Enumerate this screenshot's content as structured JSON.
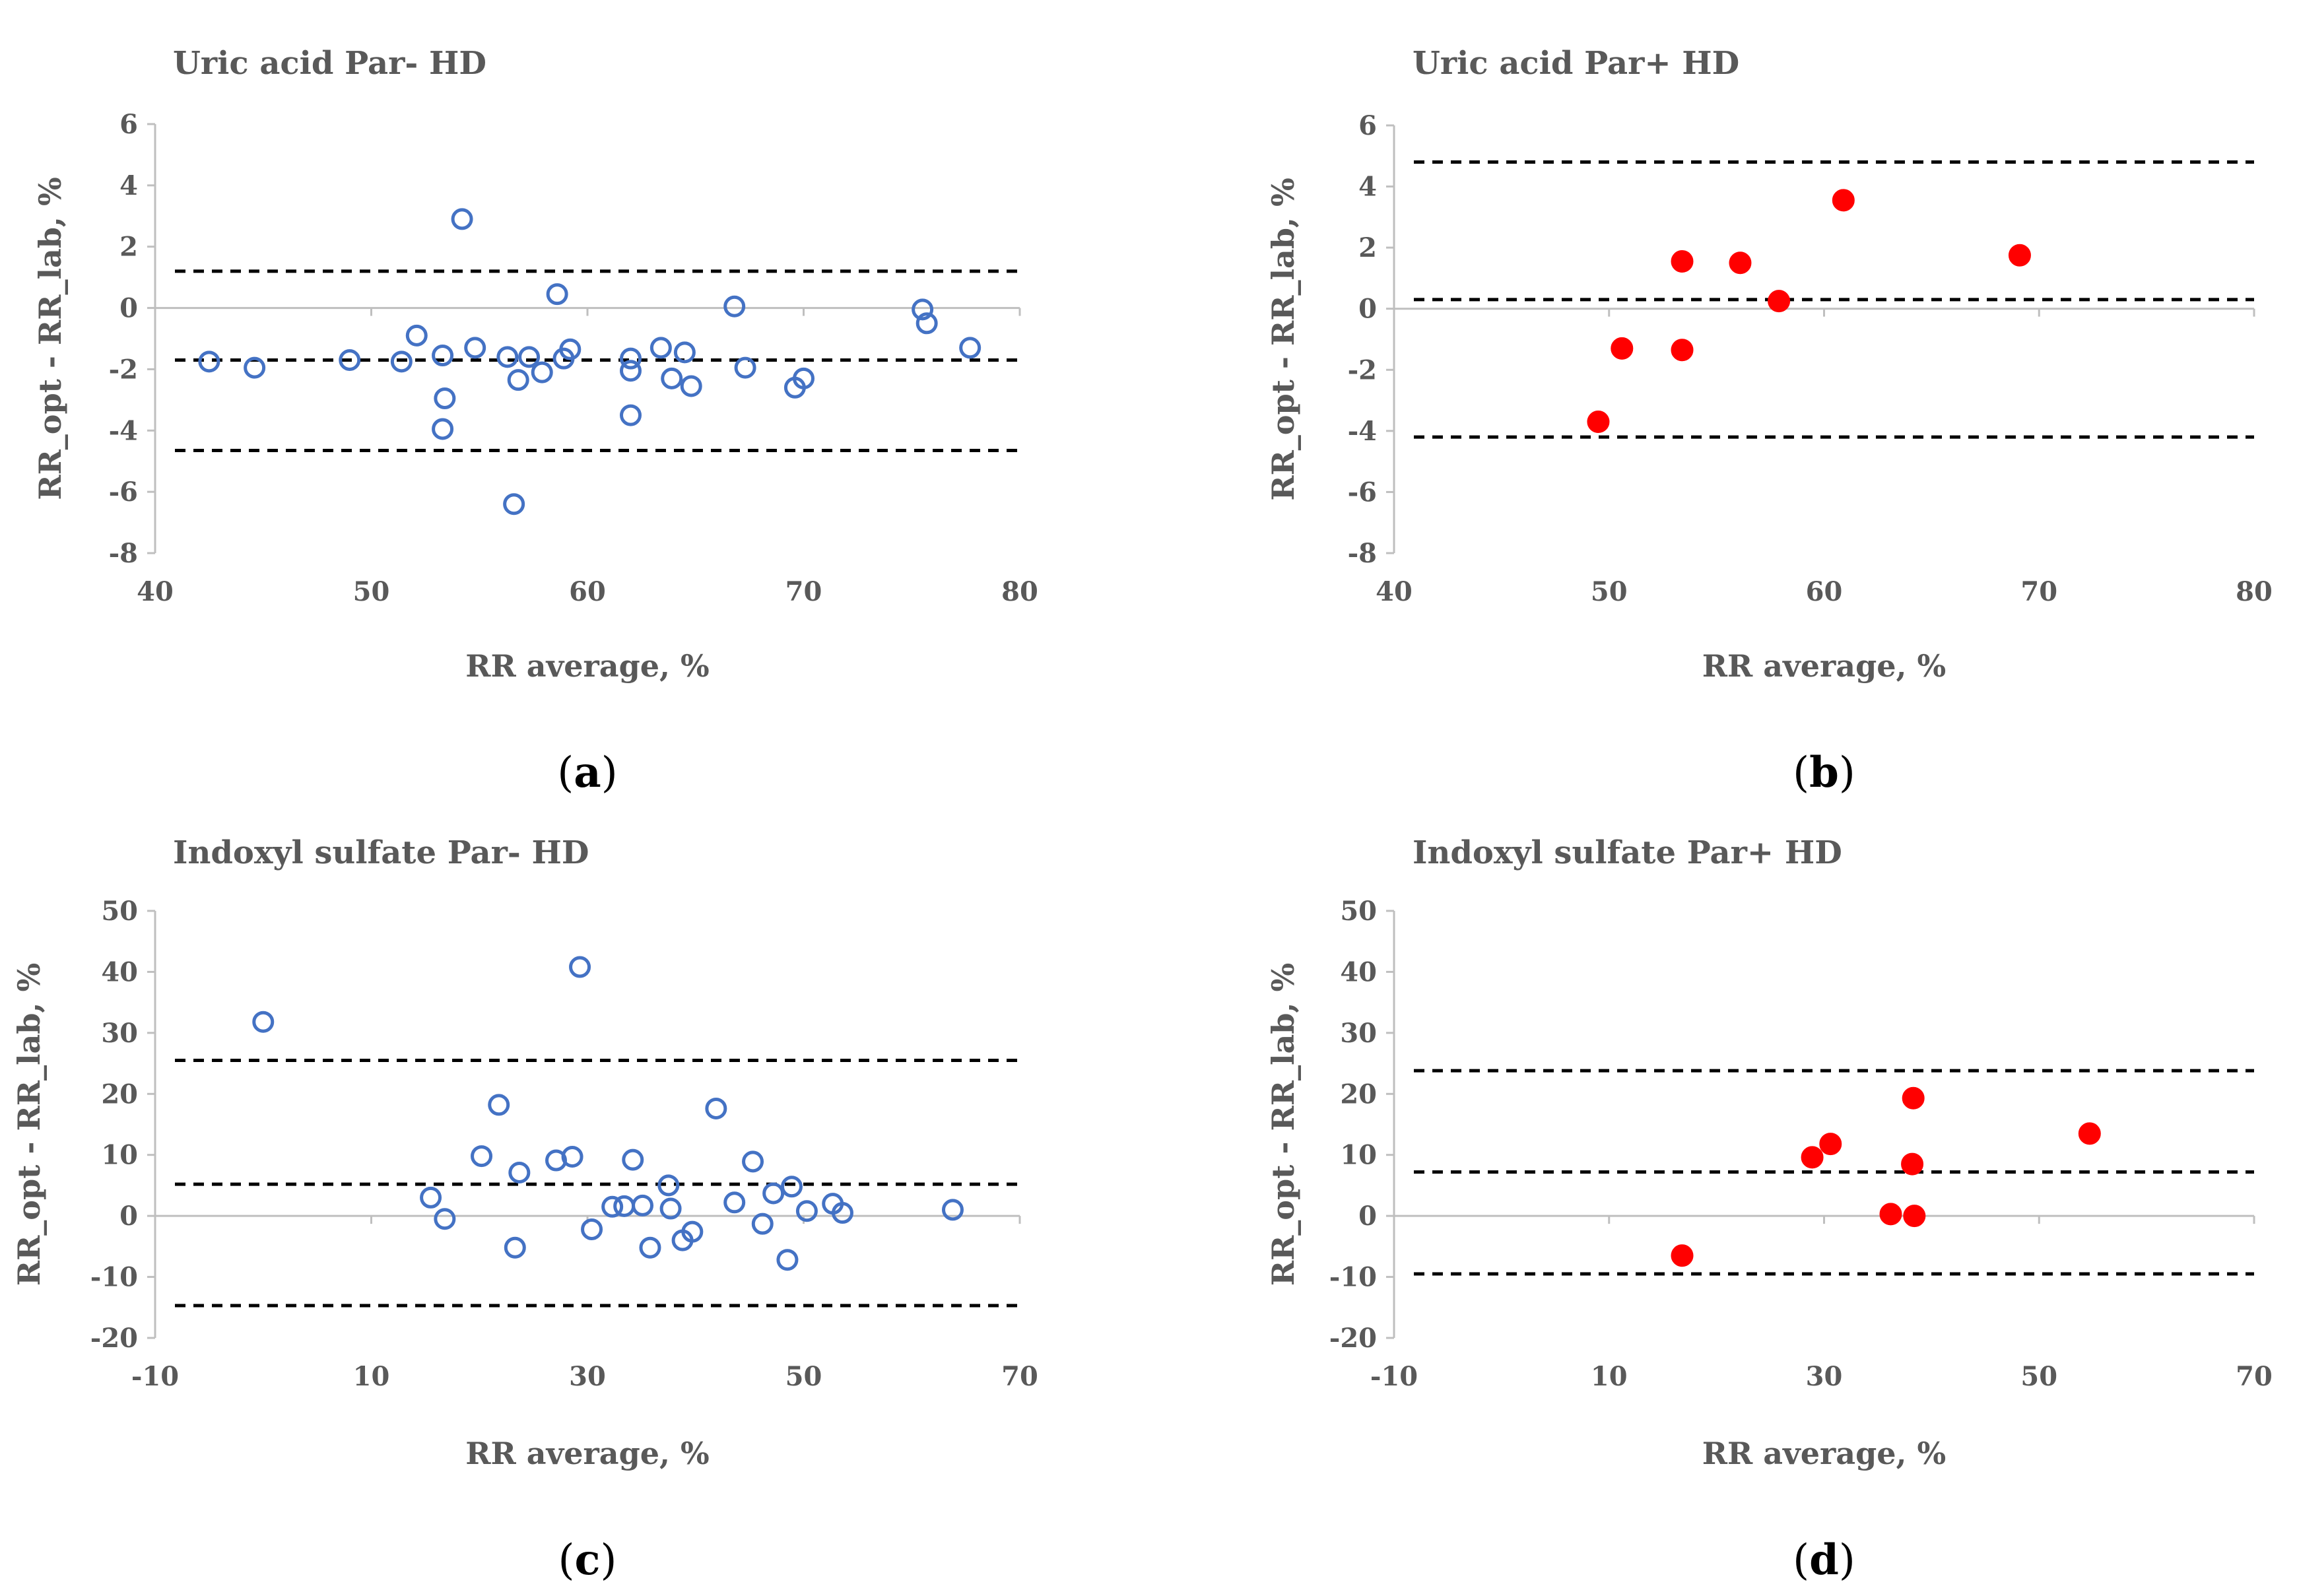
{
  "chart_data": [
    {
      "type": "scatter",
      "panel_label": "a",
      "title": "Uric acid Par- HD",
      "xlabel": "RR average, %",
      "ylabel": "RR_opt - RR_lab, %",
      "xlim": [
        40,
        80
      ],
      "ylim": [
        -8,
        6
      ],
      "xticks": [
        40,
        50,
        60,
        70,
        80
      ],
      "yticks": [
        -8,
        -6,
        -4,
        -2,
        0,
        2,
        4,
        6
      ],
      "marker": "open-circle",
      "color": "#4472C4",
      "limits": {
        "upper": 1.2,
        "mean": -1.7,
        "lower": -4.65
      },
      "points": [
        [
          42.5,
          -1.75
        ],
        [
          44.6,
          -1.95
        ],
        [
          49.0,
          -1.7
        ],
        [
          51.4,
          -1.75
        ],
        [
          52.1,
          -0.9
        ],
        [
          53.3,
          -1.55
        ],
        [
          53.4,
          -2.95
        ],
        [
          53.3,
          -3.95
        ],
        [
          54.2,
          2.9
        ],
        [
          54.8,
          -1.3
        ],
        [
          56.3,
          -1.6
        ],
        [
          56.6,
          -6.4
        ],
        [
          56.8,
          -2.35
        ],
        [
          57.3,
          -1.6
        ],
        [
          57.9,
          -2.1
        ],
        [
          58.6,
          0.45
        ],
        [
          58.9,
          -1.65
        ],
        [
          59.2,
          -1.35
        ],
        [
          62.0,
          -1.65
        ],
        [
          62.0,
          -2.05
        ],
        [
          62.0,
          -3.5
        ],
        [
          63.4,
          -1.3
        ],
        [
          63.9,
          -2.3
        ],
        [
          64.5,
          -1.45
        ],
        [
          64.8,
          -2.55
        ],
        [
          66.8,
          0.05
        ],
        [
          67.3,
          -1.95
        ],
        [
          69.6,
          -2.6
        ],
        [
          70.0,
          -2.3
        ],
        [
          75.5,
          -0.05
        ],
        [
          75.7,
          -0.5
        ],
        [
          77.7,
          -1.3
        ]
      ]
    },
    {
      "type": "scatter",
      "panel_label": "b",
      "title": "Uric acid Par+ HD",
      "xlabel": "RR average, %",
      "ylabel": "RR_opt - RR_lab, %",
      "xlim": [
        40,
        80
      ],
      "ylim": [
        -8,
        6
      ],
      "xticks": [
        40,
        50,
        60,
        70,
        80
      ],
      "yticks": [
        -8,
        -6,
        -4,
        -2,
        0,
        2,
        4,
        6
      ],
      "marker": "filled-circle",
      "color": "#FF0000",
      "limits": {
        "upper": 4.8,
        "mean": 0.3,
        "lower": -4.2
      },
      "points": [
        [
          49.5,
          -3.7
        ],
        [
          50.6,
          -1.3
        ],
        [
          53.4,
          1.55
        ],
        [
          53.4,
          -1.35
        ],
        [
          56.1,
          1.5
        ],
        [
          57.9,
          0.25
        ],
        [
          60.9,
          3.55
        ],
        [
          69.1,
          1.75
        ]
      ]
    },
    {
      "type": "scatter",
      "panel_label": "c",
      "title": "Indoxyl sulfate Par- HD",
      "xlabel": "RR average, %",
      "ylabel": "RR_opt - RR_lab, %",
      "xlim": [
        -10,
        70
      ],
      "ylim": [
        -20,
        50
      ],
      "xticks": [
        -10,
        10,
        30,
        50,
        70
      ],
      "yticks": [
        -20,
        -10,
        0,
        10,
        20,
        30,
        40,
        50
      ],
      "marker": "open-circle",
      "color": "#4472C4",
      "limits": {
        "upper": 25.5,
        "mean": 5.2,
        "lower": -14.7
      },
      "points": [
        [
          0.0,
          31.8
        ],
        [
          15.5,
          3.0
        ],
        [
          16.8,
          -0.5
        ],
        [
          20.2,
          9.8
        ],
        [
          21.8,
          18.2
        ],
        [
          23.3,
          -5.2
        ],
        [
          23.7,
          7.1
        ],
        [
          27.1,
          9.1
        ],
        [
          28.6,
          9.7
        ],
        [
          29.3,
          40.8
        ],
        [
          30.4,
          -2.2
        ],
        [
          32.3,
          1.5
        ],
        [
          33.4,
          1.6
        ],
        [
          34.2,
          9.2
        ],
        [
          35.1,
          1.7
        ],
        [
          35.8,
          -5.2
        ],
        [
          37.5,
          5.0
        ],
        [
          37.7,
          1.2
        ],
        [
          38.8,
          -4.0
        ],
        [
          39.7,
          -2.6
        ],
        [
          41.9,
          17.6
        ],
        [
          43.6,
          2.2
        ],
        [
          45.3,
          8.9
        ],
        [
          46.2,
          -1.3
        ],
        [
          47.2,
          3.7
        ],
        [
          48.5,
          -7.2
        ],
        [
          48.9,
          4.8
        ],
        [
          50.3,
          0.8
        ],
        [
          52.7,
          2.0
        ],
        [
          53.6,
          0.5
        ],
        [
          63.8,
          1.0
        ]
      ]
    },
    {
      "type": "scatter",
      "panel_label": "d",
      "title": "Indoxyl sulfate Par+ HD",
      "xlabel": "RR average, %",
      "ylabel": "RR_opt - RR_lab, %",
      "xlim": [
        -10,
        70
      ],
      "ylim": [
        -20,
        50
      ],
      "xticks": [
        -10,
        10,
        30,
        50,
        70
      ],
      "yticks": [
        -20,
        -10,
        0,
        10,
        20,
        30,
        40,
        50
      ],
      "marker": "filled-circle",
      "color": "#FF0000",
      "limits": {
        "upper": 23.8,
        "mean": 7.2,
        "lower": -9.5
      },
      "points": [
        [
          16.8,
          -6.5
        ],
        [
          28.9,
          9.6
        ],
        [
          30.6,
          11.8
        ],
        [
          36.2,
          0.3
        ],
        [
          38.3,
          19.3
        ],
        [
          38.2,
          8.5
        ],
        [
          38.4,
          0.0
        ],
        [
          54.7,
          13.5
        ]
      ]
    }
  ]
}
